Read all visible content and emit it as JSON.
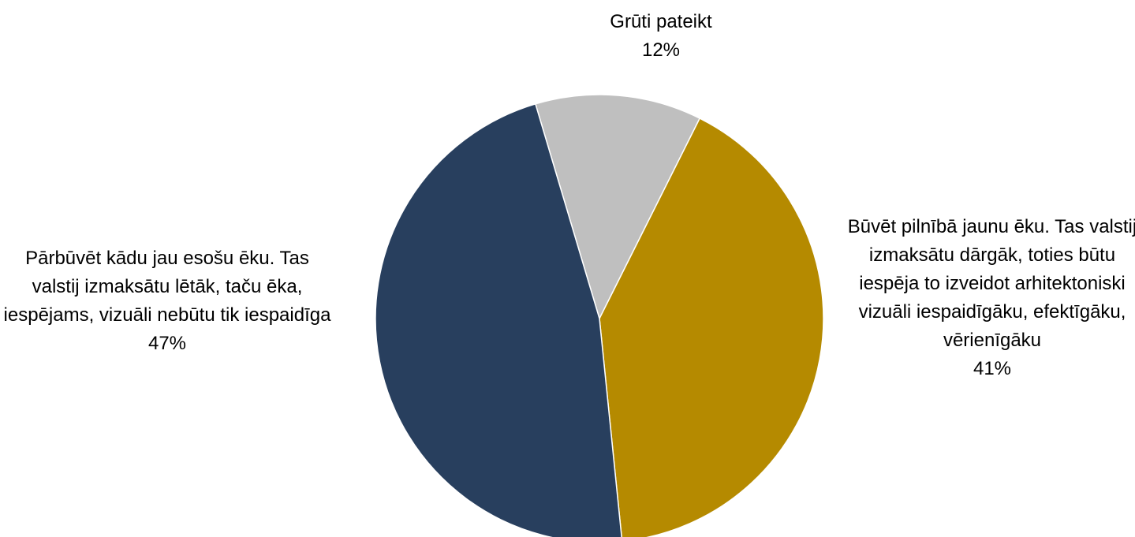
{
  "chart_data": {
    "type": "pie",
    "categories": [
      "Grūti pateikt",
      "Būvēt pilnībā jaunu ēku. Tas valstij izmaksātu dārgāk, toties būtu iespēja to izveidot arhitektoniski vizuāli iespaidīgāku, efektīgāku, vērienīgāku",
      "Pārbūvēt kādu jau esošu ēku. Tas valstij izmaksātu lētāk, taču ēka, iespējams, vizuāli nebūtu tik iespaidīga"
    ],
    "values": [
      12,
      41,
      47
    ],
    "value_labels": [
      "12%",
      "41%",
      "47%"
    ],
    "colors": [
      "#bfbfbf",
      "#b58a00",
      "#283f5e"
    ]
  }
}
